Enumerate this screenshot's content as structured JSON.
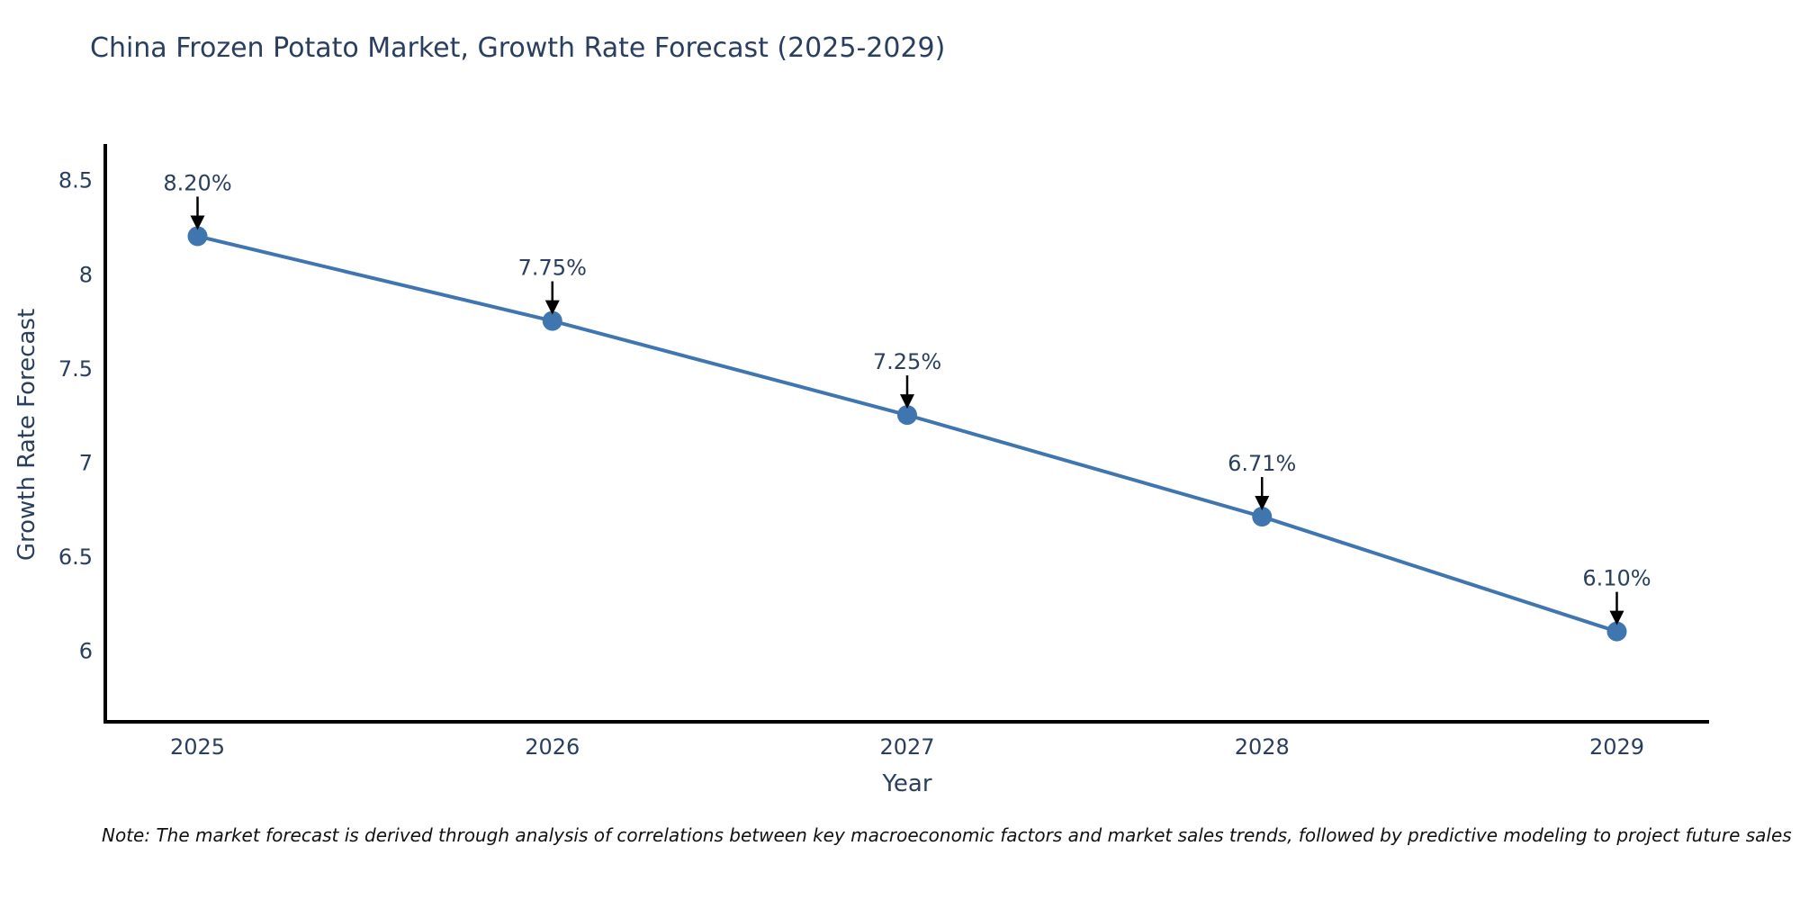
{
  "chart_data": {
    "type": "line",
    "title": "China Frozen Potato Market, Growth Rate Forecast (2025-2029)",
    "xlabel": "Year",
    "ylabel": "Growth Rate Forecast",
    "x": [
      2025,
      2026,
      2027,
      2028,
      2029
    ],
    "y": [
      8.2,
      7.75,
      7.25,
      6.71,
      6.1
    ],
    "point_labels": [
      "8.20%",
      "7.75%",
      "7.25%",
      "6.71%",
      "6.10%"
    ],
    "xticks": [
      "2025",
      "2026",
      "2027",
      "2028",
      "2029"
    ],
    "xtick_values": [
      2025,
      2026,
      2027,
      2028,
      2029
    ],
    "yticks": [
      "8.5",
      "8",
      "7.5",
      "7",
      "6.5",
      "6"
    ],
    "ytick_values": [
      8.5,
      8.0,
      7.5,
      7.0,
      6.5,
      6.0
    ],
    "xlim": [
      2024.74,
      2029.26
    ],
    "ylim": [
      5.62,
      8.69
    ],
    "grid": false,
    "legend": "none",
    "colors": {
      "line": "#3f76b0",
      "marker": "#3f76b0",
      "axis": "#000000",
      "text": "#2a3f5f",
      "annotation_arrow": "#000000"
    }
  },
  "note": {
    "text": "Note: The market forecast is derived through analysis of correlations between key macroeconomic factors and market sales trends, followed by predictive modeling to project future sales"
  }
}
